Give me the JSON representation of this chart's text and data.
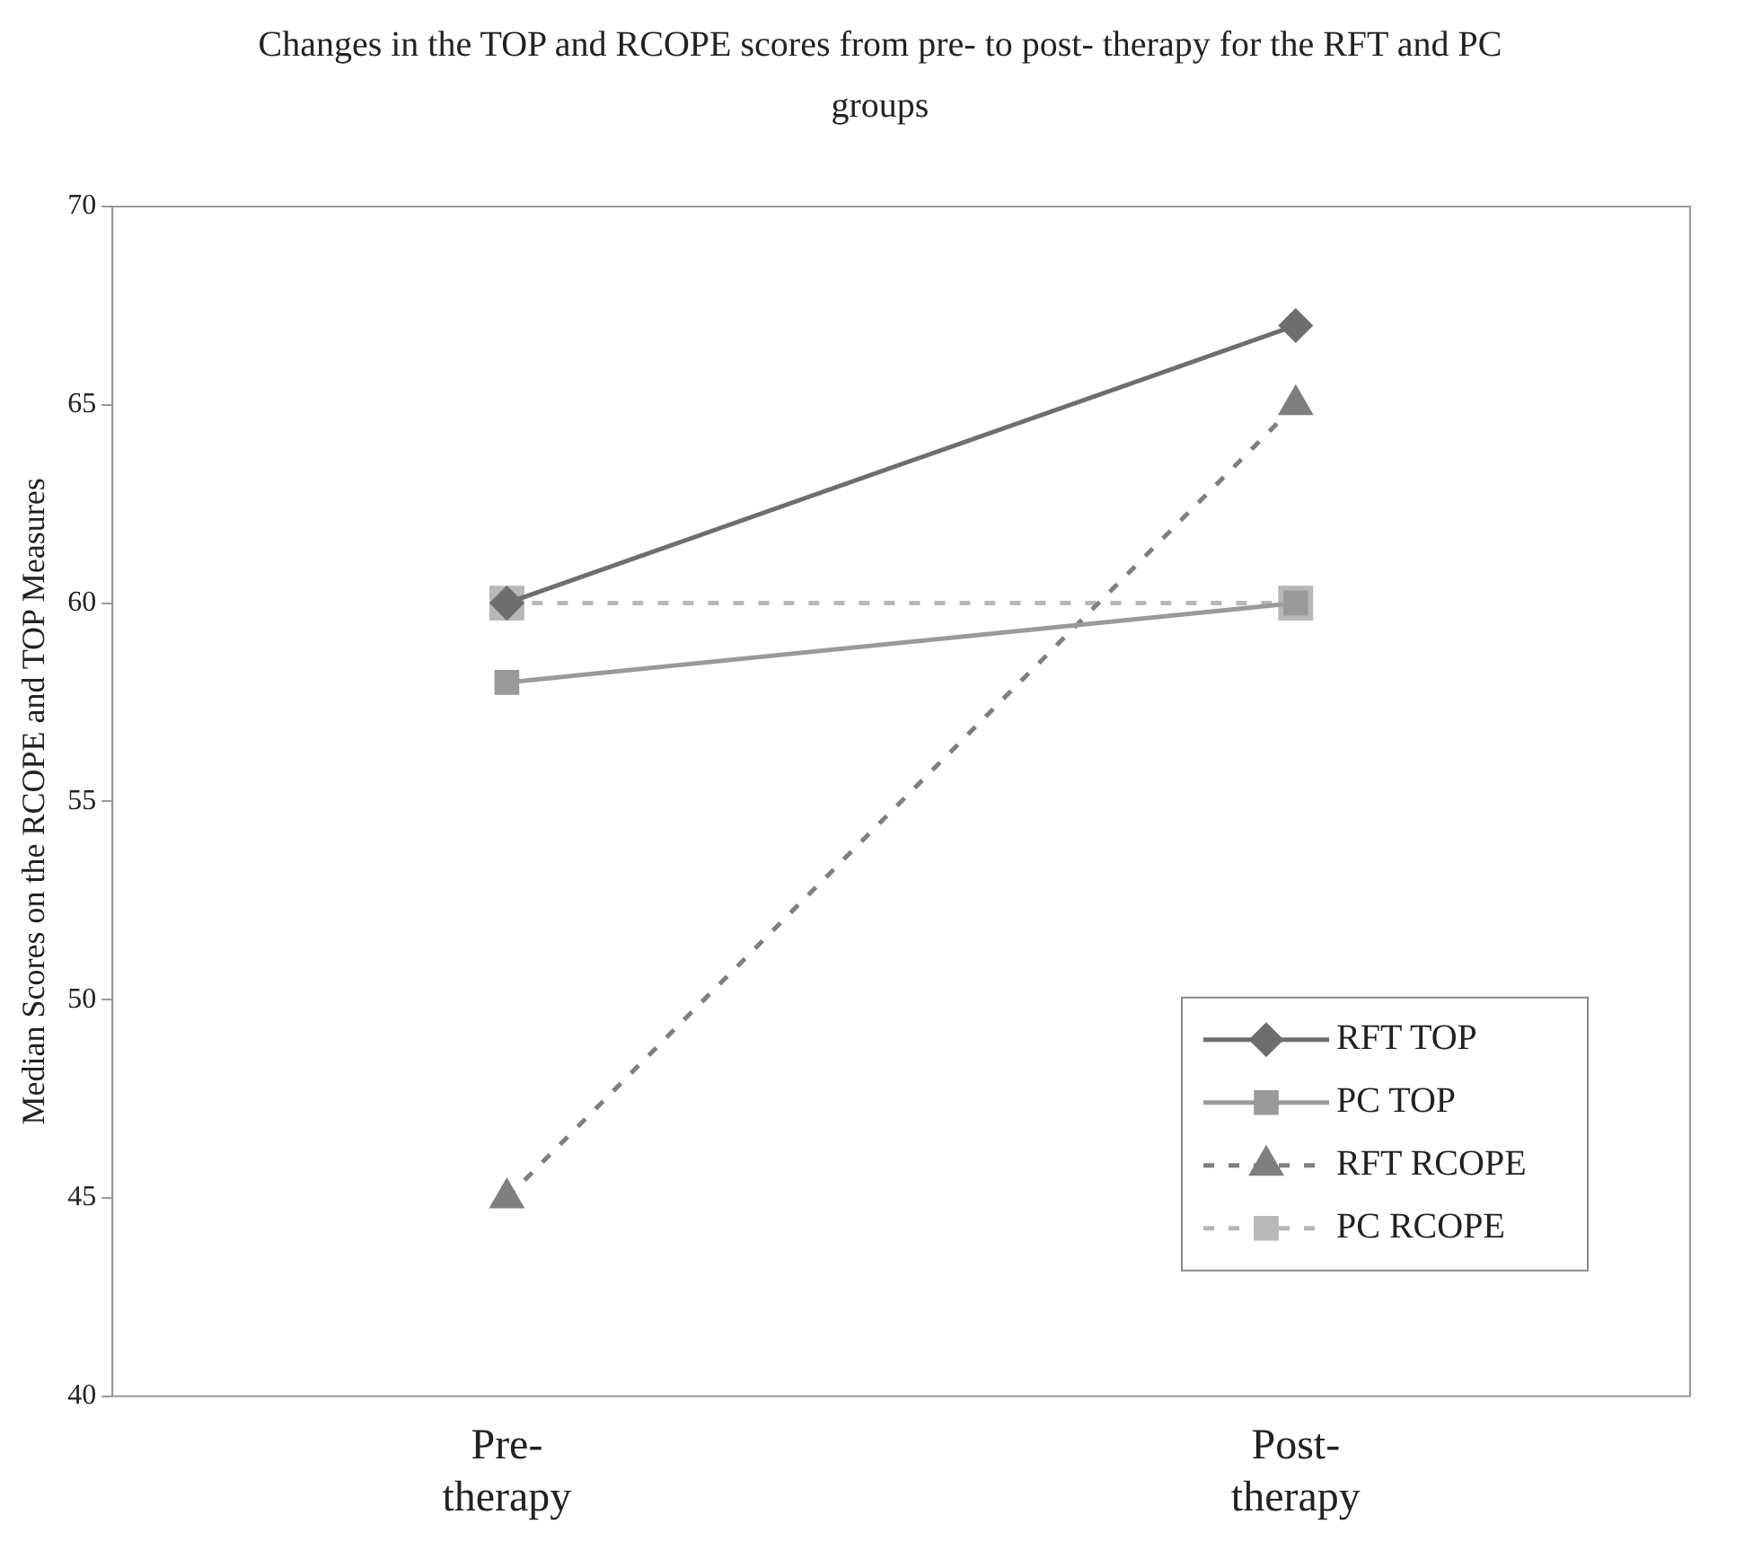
{
  "chart_data": {
    "type": "line",
    "title": "Changes in the TOP and RCOPE scores from pre- to post- therapy for the RFT and PC groups",
    "ylabel": "Median Scores on the RCOPE and TOP Measures",
    "categories": [
      "Pre- therapy",
      "Post- therapy"
    ],
    "series": [
      {
        "name": "RFT TOP",
        "color": "#6e6e6e",
        "values": [
          60,
          67
        ],
        "marker": "diamond",
        "line_style": "solid"
      },
      {
        "name": "PC TOP",
        "color": "#9a9a9a",
        "values": [
          58,
          60
        ],
        "marker": "square",
        "line_style": "solid"
      },
      {
        "name": "RFT RCOPE",
        "color": "#7f7f7f",
        "values": [
          45,
          65
        ],
        "marker": "triangle",
        "line_style": "dashed"
      },
      {
        "name": "PC RCOPE",
        "color": "#b8b8b8",
        "values": [
          60,
          60
        ],
        "marker": "square",
        "line_style": "dashed"
      }
    ],
    "ylim": [
      40,
      70
    ],
    "yticks": [
      40,
      45,
      50,
      55,
      60,
      65,
      70
    ],
    "grid": false,
    "legend": "bottom right"
  }
}
